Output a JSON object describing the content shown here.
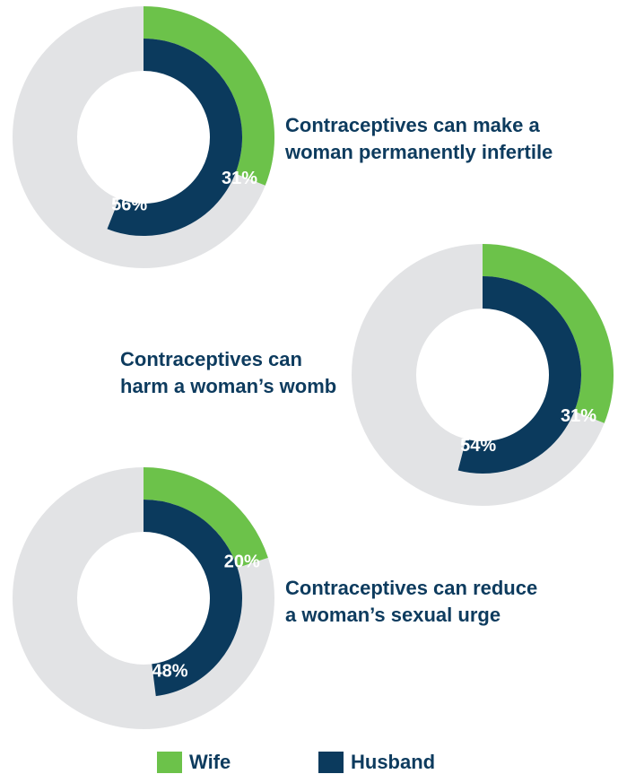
{
  "colors": {
    "wife": "#6cc24a",
    "husband": "#0b3a5d",
    "track": "#e2e3e5",
    "text": "#0d3b5e",
    "label_text": "#ffffff"
  },
  "chart_data": [
    {
      "type": "donut",
      "title": "Contraceptives can make a woman permanently infertile",
      "title_lines": [
        "Contraceptives can make a",
        "woman permanently infertile"
      ],
      "series": [
        {
          "name": "Wife",
          "value": 31,
          "label": "31%"
        },
        {
          "name": "Husband",
          "value": 56,
          "label": "56%"
        }
      ]
    },
    {
      "type": "donut",
      "title": "Contraceptives can harm a woman’s womb",
      "title_lines": [
        "Contraceptives can",
        "harm a woman’s womb"
      ],
      "series": [
        {
          "name": "Wife",
          "value": 31,
          "label": "31%"
        },
        {
          "name": "Husband",
          "value": 54,
          "label": "54%"
        }
      ]
    },
    {
      "type": "donut",
      "title": "Contraceptives can reduce a woman’s sexual urge",
      "title_lines": [
        "Contraceptives can reduce",
        "a woman’s sexual urge"
      ],
      "series": [
        {
          "name": "Wife",
          "value": 20,
          "label": "20%"
        },
        {
          "name": "Husband",
          "value": 48,
          "label": "48%"
        }
      ]
    }
  ],
  "legend": [
    {
      "name": "Wife",
      "color": "#6cc24a"
    },
    {
      "name": "Husband",
      "color": "#0b3a5d"
    }
  ]
}
